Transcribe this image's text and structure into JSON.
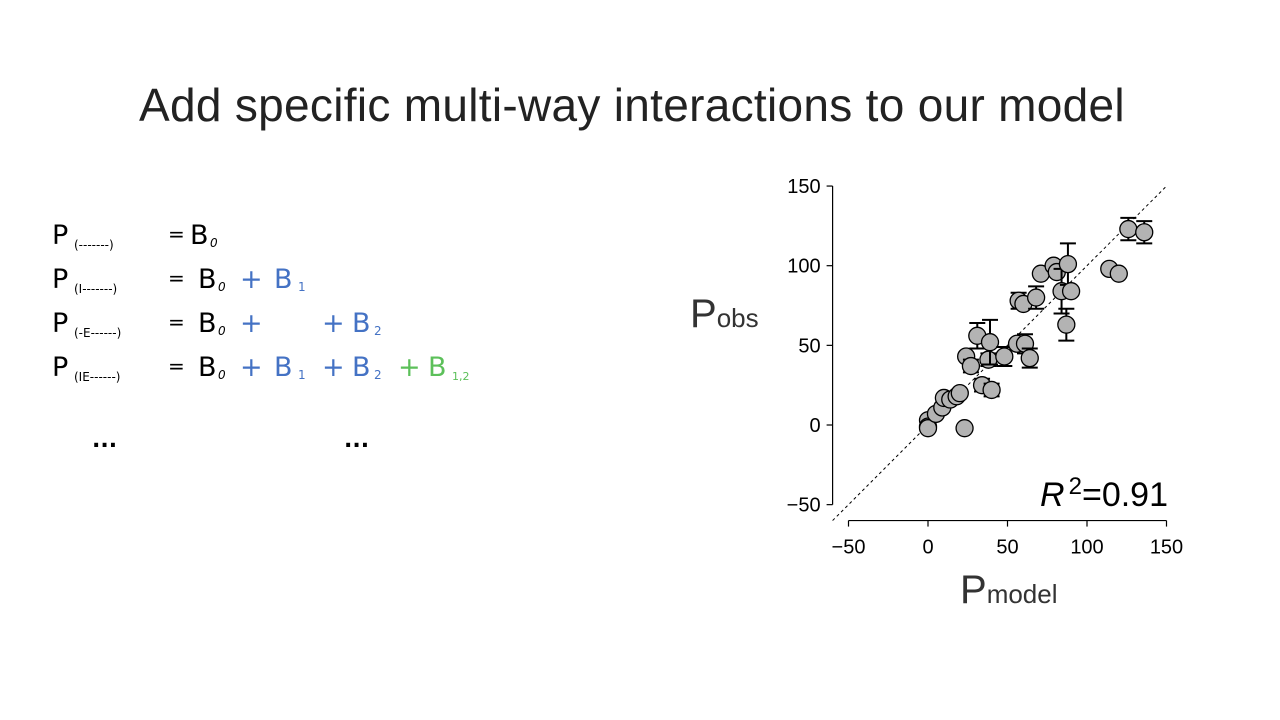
{
  "slide": {
    "title": "Add specific multi-way interactions to our model"
  },
  "equations": [
    {
      "lhs": "P",
      "lhs_sub": "(-------)",
      "eq": "=",
      "b0": "B",
      "b0_sub": "0"
    },
    {
      "lhs": "P",
      "lhs_sub": "(I-------)",
      "eq": "=",
      "b0": "B",
      "b0_sub": "0",
      "plus1": "+",
      "b1": "B",
      "b1_sub": "1"
    },
    {
      "lhs": "P",
      "lhs_sub": "(-E------)",
      "eq": "=",
      "b0": "B",
      "b0_sub": "0",
      "plus1": "+",
      "plus2": "+",
      "b2": "B",
      "b2_sub": "2"
    },
    {
      "lhs": "P",
      "lhs_sub": "(IE------)",
      "eq": "=",
      "b0": "B",
      "b0_sub": "0",
      "plus1": "+",
      "b1": "B",
      "b1_sub": "1",
      "plus2": "+",
      "b2": "B",
      "b2_sub": "2",
      "plus3": "+",
      "b12": "B",
      "b12_sub": "1,2"
    }
  ],
  "ellipses": [
    "...",
    "..."
  ],
  "colors": {
    "main_effect": "#4472c4",
    "interaction": "#5cc05a",
    "marker_fill": "#b3b3b3"
  },
  "chart_data": {
    "type": "scatter",
    "xlabel": {
      "main": "P",
      "sub": "model"
    },
    "ylabel": {
      "main": "P",
      "sub": "obs"
    },
    "xlim": [
      -60,
      150
    ],
    "ylim": [
      -60,
      150
    ],
    "xticks": [
      -50,
      0,
      50,
      100,
      150
    ],
    "yticks": [
      -50,
      0,
      50,
      100,
      150
    ],
    "xtick_labels": [
      "−50",
      "0",
      "50",
      "100",
      "150"
    ],
    "ytick_labels": [
      "−50",
      "0",
      "50",
      "100",
      "150"
    ],
    "reference_line": "y = x (dashed)",
    "annotation": {
      "symbol": "R",
      "sup": "2",
      "value": "=0.91"
    },
    "points": [
      {
        "x": 0,
        "y": 3,
        "err": 0
      },
      {
        "x": 0,
        "y": -1,
        "err": 0
      },
      {
        "x": 0,
        "y": -2,
        "err": 0
      },
      {
        "x": 5,
        "y": 7,
        "err": 0
      },
      {
        "x": 9,
        "y": 11,
        "err": 0
      },
      {
        "x": 10,
        "y": 17,
        "err": 0
      },
      {
        "x": 14,
        "y": 16,
        "err": 0
      },
      {
        "x": 18,
        "y": 18,
        "err": 0
      },
      {
        "x": 20,
        "y": 20,
        "err": 0
      },
      {
        "x": 23,
        "y": -2,
        "err": 0
      },
      {
        "x": 24,
        "y": 43,
        "err": 0
      },
      {
        "x": 27,
        "y": 37,
        "err": 4
      },
      {
        "x": 31,
        "y": 56,
        "err": 8
      },
      {
        "x": 34,
        "y": 25,
        "err": 4
      },
      {
        "x": 38,
        "y": 41,
        "err": 4
      },
      {
        "x": 39,
        "y": 52,
        "err": 14
      },
      {
        "x": 40,
        "y": 22,
        "err": 4
      },
      {
        "x": 48,
        "y": 43,
        "err": 6
      },
      {
        "x": 56,
        "y": 51,
        "err": 0
      },
      {
        "x": 57,
        "y": 78,
        "err": 5
      },
      {
        "x": 60,
        "y": 76,
        "err": 0
      },
      {
        "x": 61,
        "y": 51,
        "err": 6
      },
      {
        "x": 64,
        "y": 42,
        "err": 6
      },
      {
        "x": 68,
        "y": 80,
        "err": 7
      },
      {
        "x": 71,
        "y": 95,
        "err": 0
      },
      {
        "x": 79,
        "y": 100,
        "err": 0
      },
      {
        "x": 81,
        "y": 96,
        "err": 0
      },
      {
        "x": 84,
        "y": 84,
        "err": 14
      },
      {
        "x": 87,
        "y": 63,
        "err": 10
      },
      {
        "x": 88,
        "y": 101,
        "err": 13
      },
      {
        "x": 90,
        "y": 84,
        "err": 0
      },
      {
        "x": 114,
        "y": 98,
        "err": 0
      },
      {
        "x": 120,
        "y": 95,
        "err": 0
      },
      {
        "x": 126,
        "y": 123,
        "err": 7
      },
      {
        "x": 136,
        "y": 121,
        "err": 7
      }
    ]
  }
}
